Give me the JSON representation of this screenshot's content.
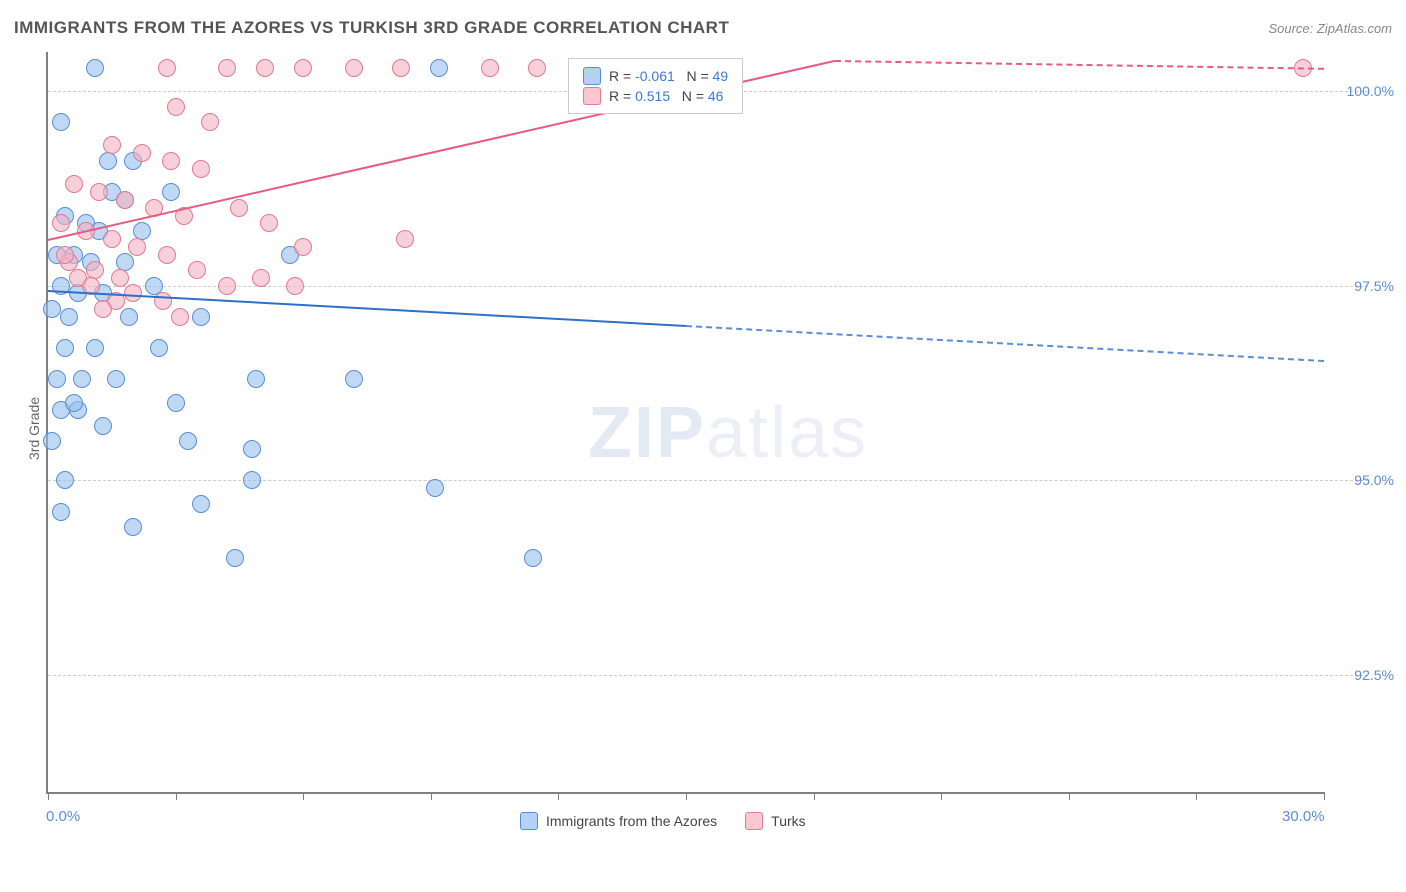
{
  "title": "IMMIGRANTS FROM THE AZORES VS TURKISH 3RD GRADE CORRELATION CHART",
  "source": "Source: ZipAtlas.com",
  "ylabel": "3rd Grade",
  "watermark_a": "ZIP",
  "watermark_b": "atlas",
  "chart": {
    "type": "scatter",
    "xlim": [
      0,
      30
    ],
    "ylim": [
      91,
      100.5
    ],
    "x_ticks": [
      0,
      3,
      6,
      9,
      12,
      15,
      18,
      21,
      24,
      27,
      30
    ],
    "x_tick_labels": {
      "0": "0.0%",
      "30": "30.0%"
    },
    "y_ticks": [
      92.5,
      95.0,
      97.5,
      100.0
    ],
    "y_tick_labels": [
      "92.5%",
      "95.0%",
      "97.5%",
      "100.0%"
    ],
    "background_color": "#ffffff",
    "grid_color": "#cccccc",
    "axis_color": "#808080",
    "marker_radius": 9,
    "series": [
      {
        "name": "Immigrants from the Azores",
        "color_fill": "rgba(148,191,237,0.6)",
        "color_stroke": "#5b8dd6",
        "R": "-0.061",
        "N": "49",
        "trend": {
          "x0": 0,
          "y0": 97.45,
          "x1": 15,
          "y1": 97.0,
          "extend_to_x": 30,
          "y_extend": 96.55,
          "color": "#2e6fc7"
        },
        "points": [
          [
            1.1,
            100.3
          ],
          [
            9.2,
            100.3
          ],
          [
            0.3,
            99.6
          ],
          [
            1.4,
            99.1
          ],
          [
            2.0,
            99.1
          ],
          [
            1.5,
            98.7
          ],
          [
            1.8,
            98.6
          ],
          [
            2.9,
            98.7
          ],
          [
            0.4,
            98.4
          ],
          [
            0.9,
            98.3
          ],
          [
            1.2,
            98.2
          ],
          [
            2.2,
            98.2
          ],
          [
            0.2,
            97.9
          ],
          [
            0.6,
            97.9
          ],
          [
            1.0,
            97.8
          ],
          [
            1.8,
            97.8
          ],
          [
            5.7,
            97.9
          ],
          [
            0.3,
            97.5
          ],
          [
            0.7,
            97.4
          ],
          [
            1.3,
            97.4
          ],
          [
            2.5,
            97.5
          ],
          [
            0.1,
            97.2
          ],
          [
            0.5,
            97.1
          ],
          [
            1.9,
            97.1
          ],
          [
            3.6,
            97.1
          ],
          [
            0.4,
            96.7
          ],
          [
            1.1,
            96.7
          ],
          [
            2.6,
            96.7
          ],
          [
            0.2,
            96.3
          ],
          [
            0.8,
            96.3
          ],
          [
            1.6,
            96.3
          ],
          [
            4.9,
            96.3
          ],
          [
            7.2,
            96.3
          ],
          [
            0.3,
            95.9
          ],
          [
            0.7,
            95.9
          ],
          [
            0.1,
            95.5
          ],
          [
            3.3,
            95.5
          ],
          [
            4.8,
            95.4
          ],
          [
            0.4,
            95.0
          ],
          [
            4.8,
            95.0
          ],
          [
            9.1,
            94.9
          ],
          [
            3.6,
            94.7
          ],
          [
            4.4,
            94.0
          ],
          [
            11.4,
            94.0
          ],
          [
            0.3,
            94.6
          ],
          [
            2.0,
            94.4
          ],
          [
            3.0,
            96.0
          ],
          [
            0.6,
            96.0
          ],
          [
            1.3,
            95.7
          ]
        ]
      },
      {
        "name": "Turks",
        "color_fill": "rgba(244,176,191,0.6)",
        "color_stroke": "#e27a94",
        "R": "0.515",
        "N": "46",
        "trend": {
          "x0": 0,
          "y0": 98.1,
          "x1": 18.5,
          "y1": 100.4,
          "extend_to_x": 30,
          "y_extend": 100.3,
          "color": "#e85a82"
        },
        "points": [
          [
            2.8,
            100.3
          ],
          [
            4.2,
            100.3
          ],
          [
            5.1,
            100.3
          ],
          [
            6.0,
            100.3
          ],
          [
            7.2,
            100.3
          ],
          [
            8.3,
            100.3
          ],
          [
            10.4,
            100.3
          ],
          [
            11.5,
            100.3
          ],
          [
            14.7,
            100.3
          ],
          [
            15.5,
            100.3
          ],
          [
            29.5,
            100.3
          ],
          [
            3.0,
            99.8
          ],
          [
            3.8,
            99.6
          ],
          [
            1.5,
            99.3
          ],
          [
            2.2,
            99.2
          ],
          [
            2.9,
            99.1
          ],
          [
            3.6,
            99.0
          ],
          [
            0.6,
            98.8
          ],
          [
            1.2,
            98.7
          ],
          [
            1.8,
            98.6
          ],
          [
            2.5,
            98.5
          ],
          [
            3.2,
            98.4
          ],
          [
            0.3,
            98.3
          ],
          [
            0.9,
            98.2
          ],
          [
            1.5,
            98.1
          ],
          [
            2.1,
            98.0
          ],
          [
            2.8,
            97.9
          ],
          [
            0.5,
            97.8
          ],
          [
            1.1,
            97.7
          ],
          [
            1.7,
            97.6
          ],
          [
            4.5,
            98.5
          ],
          [
            5.2,
            98.3
          ],
          [
            6.0,
            98.0
          ],
          [
            3.5,
            97.7
          ],
          [
            4.2,
            97.5
          ],
          [
            5.0,
            97.6
          ],
          [
            2.0,
            97.4
          ],
          [
            2.7,
            97.3
          ],
          [
            0.4,
            97.9
          ],
          [
            1.0,
            97.5
          ],
          [
            1.6,
            97.3
          ],
          [
            8.4,
            98.1
          ],
          [
            3.1,
            97.1
          ],
          [
            0.7,
            97.6
          ],
          [
            1.3,
            97.2
          ],
          [
            5.8,
            97.5
          ]
        ]
      }
    ]
  },
  "legend_top": {
    "label_R": "R =",
    "label_N": "N ="
  },
  "legend_bottom": [
    {
      "swatch": "blue",
      "label": "Immigrants from the Azores"
    },
    {
      "swatch": "pink",
      "label": "Turks"
    }
  ]
}
